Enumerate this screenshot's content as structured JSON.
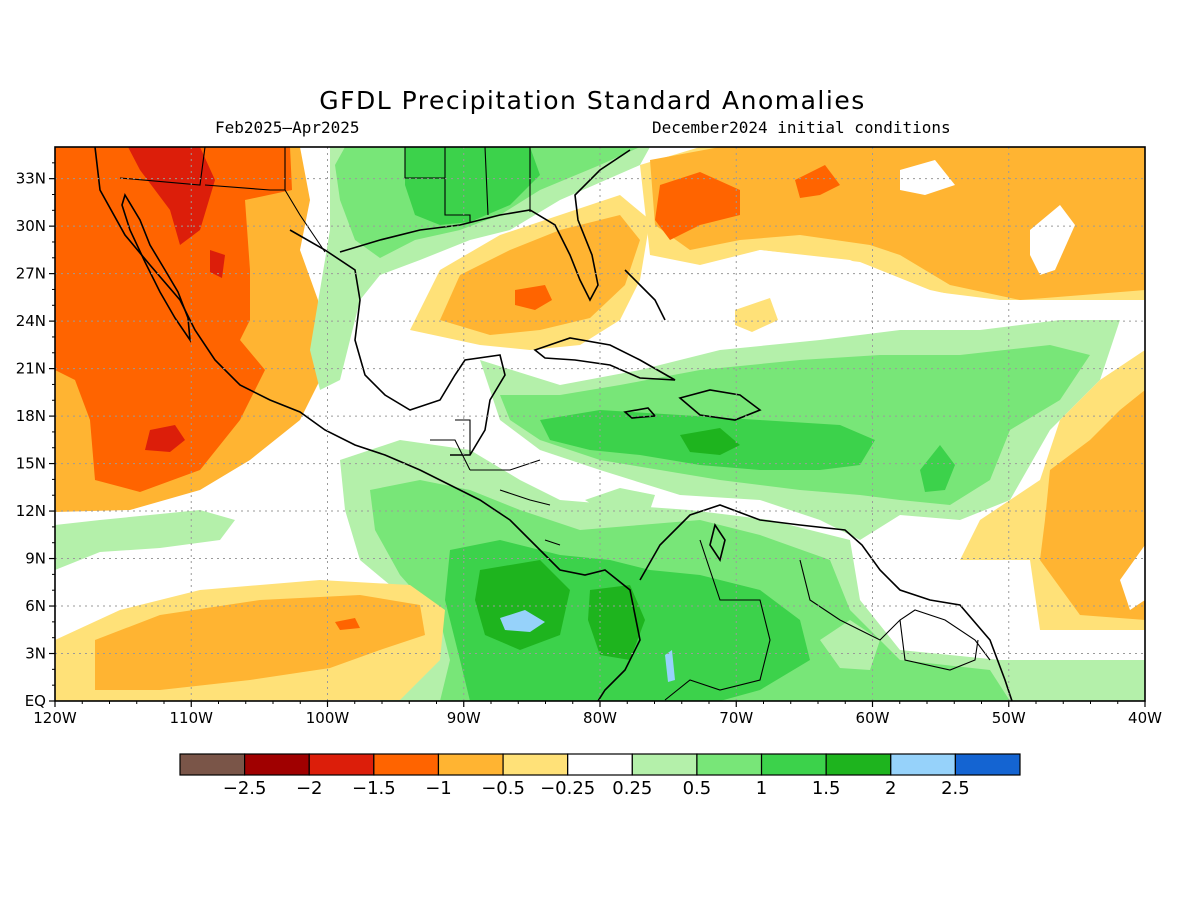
{
  "title": "GFDL Precipitation Standard Anomalies",
  "period": "Feb2025–Apr2025",
  "init": "December2024 initial conditions",
  "lat_labels": [
    "33N",
    "30N",
    "27N",
    "24N",
    "21N",
    "18N",
    "15N",
    "12N",
    "9N",
    "6N",
    "3N",
    "EQ"
  ],
  "lat_values": [
    33,
    30,
    27,
    24,
    21,
    18,
    15,
    12,
    9,
    6,
    3,
    0
  ],
  "lon_labels": [
    "120W",
    "110W",
    "100W",
    "90W",
    "80W",
    "70W",
    "60W",
    "50W",
    "40W"
  ],
  "lon_values": [
    -120,
    -110,
    -100,
    -90,
    -80,
    -70,
    -60,
    -50,
    -40
  ],
  "colorbar": {
    "colors": [
      "#7a5548",
      "#a00000",
      "#dc1e0a",
      "#ff6400",
      "#ffb432",
      "#ffe178",
      "#ffffff",
      "#b4f0aa",
      "#78e678",
      "#3cd24b",
      "#1eb41e",
      "#96d2fa",
      "#1464d2"
    ],
    "labels": [
      "−2.5",
      "−2",
      "−1.5",
      "−1",
      "−0.5",
      "−0.25",
      "0.25",
      "0.5",
      "1",
      "1.5",
      "2",
      "2.5"
    ]
  },
  "palette": {
    "ocean_white": "#ffffff",
    "land_border": "#000000",
    "grid": "#9a9a9a"
  }
}
